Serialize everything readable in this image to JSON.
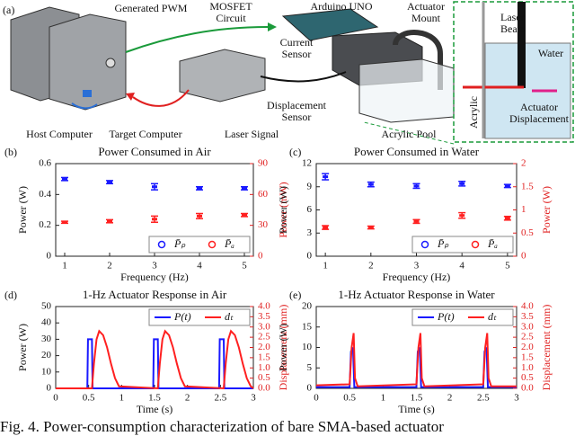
{
  "figure": {
    "panel_label": "(a)",
    "labels": {
      "generated_pwm": [
        "Generated PWM"
      ],
      "mosfet": [
        "MOSFET",
        "Circuit"
      ],
      "arduino": [
        "Arduino UNO"
      ],
      "actuator_mount": [
        "Actuator",
        "Mount"
      ],
      "current_sensor": [
        "Current",
        "Sensor"
      ],
      "displacement_sensor": [
        "Displacement",
        "Sensor"
      ],
      "host_computer": [
        "Host Computer"
      ],
      "target_computer": [
        "Target Computer"
      ],
      "laser_signal": [
        "Laser Signal"
      ],
      "acrylic_pool": [
        "Acrylic Pool"
      ],
      "laser_beam": [
        "Laser",
        "Beam"
      ],
      "water": [
        "Water"
      ],
      "acrylic": [
        "Acrylic"
      ],
      "actuator_displacement": [
        "Actuator",
        "Displacement"
      ]
    },
    "caption": "Fig. 4. Power-consumption characterization of bare SMA-based actuator"
  },
  "chart_data": [
    {
      "type": "errorbar",
      "panel_label": "(b)",
      "title": "Power Consumed in Air",
      "x_label": "Frequency (Hz)",
      "y_label": "Power (W)",
      "y2_label": "Power (mW)",
      "x": [
        1,
        2,
        3,
        4,
        5
      ],
      "xlim": [
        0.8,
        5.2
      ],
      "xticks": [
        1,
        2,
        3,
        4,
        5
      ],
      "ylim": [
        0,
        0.6
      ],
      "yticks": [
        0,
        0.2,
        0.4,
        0.6
      ],
      "y2lim": [
        0,
        90
      ],
      "y2ticks": [
        0,
        30,
        60,
        90
      ],
      "legend": "lower right",
      "series": [
        {
          "name": "P̄ₚ",
          "color": "#1a1aff",
          "values": [
            0.5,
            0.48,
            0.45,
            0.44,
            0.44
          ],
          "errors": [
            0.01,
            0.01,
            0.02,
            0.01,
            0.01
          ]
        },
        {
          "name": "P̄ₐ",
          "color": "#ff2020",
          "axis": "y2",
          "values": [
            33,
            34,
            36,
            39,
            40
          ],
          "errors": [
            1,
            1.5,
            3,
            2.5,
            1.5
          ]
        }
      ]
    },
    {
      "type": "errorbar",
      "panel_label": "(c)",
      "title": "Power Consumed in Water",
      "x_label": "Frequency (Hz)",
      "y_label": "Power (W)",
      "y2_label": "Power (W)",
      "x": [
        1,
        2,
        3,
        4,
        5
      ],
      "xlim": [
        0.8,
        5.2
      ],
      "xticks": [
        1,
        2,
        3,
        4,
        5
      ],
      "ylim": [
        0,
        12
      ],
      "yticks": [
        0,
        3,
        6,
        9,
        12
      ],
      "y2lim": [
        0,
        2
      ],
      "y2ticks": [
        0,
        0.5,
        1,
        1.5,
        2
      ],
      "legend": "lower right",
      "series": [
        {
          "name": "P̄ₚ",
          "color": "#1a1aff",
          "values": [
            10.3,
            9.3,
            9.1,
            9.4,
            9.1
          ],
          "errors": [
            0.4,
            0.3,
            0.3,
            0.3,
            0.2
          ]
        },
        {
          "name": "P̄ₐ",
          "color": "#ff2020",
          "axis": "y2",
          "values": [
            0.62,
            0.62,
            0.75,
            0.88,
            0.82
          ],
          "errors": [
            0.04,
            0.03,
            0.04,
            0.06,
            0.04
          ]
        }
      ]
    },
    {
      "type": "line",
      "panel_label": "(d)",
      "title": "1-Hz Actuator Response in Air",
      "x_label": "Time (s)",
      "y_label": "Power (W)",
      "y2_label": "Displacement (mm)",
      "xlim": [
        0,
        3
      ],
      "xticks": [
        0,
        0.5,
        1,
        1.5,
        2,
        2.5,
        3
      ],
      "ylim": [
        0,
        50
      ],
      "yticks": [
        0,
        10,
        20,
        30,
        40,
        50
      ],
      "y2lim": [
        0,
        4
      ],
      "y2ticks": [
        {
          "value": 0,
          "label": "0.0"
        },
        0.5,
        {
          "value": 1,
          "label": "1.0"
        },
        1.5,
        {
          "value": 2,
          "label": "2.0"
        },
        2.5,
        {
          "value": 3,
          "label": "3.0"
        },
        3.5,
        {
          "value": 4,
          "label": "4.0"
        }
      ],
      "legend": "upper right",
      "series": [
        {
          "name": "P(t)",
          "color": "#1a1aff",
          "x": [
            0,
            0.48,
            0.49,
            0.55,
            0.56,
            1.48,
            1.49,
            1.55,
            1.56,
            2.48,
            2.49,
            2.55,
            2.56,
            3
          ],
          "y": [
            0,
            0,
            30,
            30,
            0,
            0,
            30,
            30,
            0,
            0,
            30,
            30,
            0,
            0
          ]
        },
        {
          "name": "dₜ",
          "color": "#ff2020",
          "axis": "y2",
          "x": [
            0,
            0.55,
            0.58,
            0.62,
            0.66,
            0.72,
            0.78,
            0.84,
            0.9,
            0.96,
            1.55,
            1.58,
            1.62,
            1.66,
            1.72,
            1.78,
            1.84,
            1.9,
            1.96,
            2.55,
            2.58,
            2.62,
            2.66,
            2.72,
            2.78,
            2.84,
            2.9,
            2.96,
            3
          ],
          "y": [
            0,
            0,
            1.2,
            2.4,
            2.8,
            2.6,
            2,
            1.2,
            0.5,
            0.1,
            0,
            1.2,
            2.4,
            2.8,
            2.6,
            2,
            1.2,
            0.5,
            0.1,
            0,
            1.2,
            2.4,
            2.8,
            2.6,
            2,
            1.2,
            0.5,
            0.1,
            0
          ]
        }
      ]
    },
    {
      "type": "line",
      "panel_label": "(e)",
      "title": "1-Hz Actuator Response in Water",
      "x_label": "Time (s)",
      "y_label": "Power (W)",
      "y2_label": "Displacement (mm)",
      "xlim": [
        0,
        3
      ],
      "xticks": [
        0,
        0.5,
        1,
        1.5,
        2,
        2.5,
        3
      ],
      "ylim": [
        0,
        20
      ],
      "yticks": [
        0,
        5,
        10,
        15,
        20
      ],
      "y2lim": [
        0,
        4
      ],
      "y2ticks": [
        {
          "value": 0,
          "label": "0.0"
        },
        0.5,
        {
          "value": 1,
          "label": "1.0"
        },
        1.5,
        {
          "value": 2,
          "label": "2.0"
        },
        2.5,
        {
          "value": 3,
          "label": "3.0"
        },
        3.5,
        {
          "value": 4,
          "label": "4.0"
        }
      ],
      "legend": "upper right",
      "series": [
        {
          "name": "P(t)",
          "color": "#1a1aff",
          "x": [
            0,
            0.5,
            0.52,
            0.55,
            0.57,
            1.5,
            1.52,
            1.55,
            1.57,
            2.5,
            2.52,
            2.55,
            2.57,
            3
          ],
          "y": [
            0.3,
            0.3,
            9,
            10,
            0.3,
            0.3,
            9,
            10,
            0.3,
            0.3,
            9,
            10,
            0.3,
            0.3
          ]
        },
        {
          "name": "dₜ",
          "color": "#ff2020",
          "axis": "y2",
          "x": [
            0,
            0.5,
            0.53,
            0.56,
            0.58,
            0.62,
            1.5,
            1.53,
            1.56,
            1.58,
            1.62,
            2.5,
            2.53,
            2.56,
            2.58,
            2.62,
            3
          ],
          "y": [
            0.15,
            0.2,
            2,
            2.7,
            0.5,
            0.1,
            0.2,
            2,
            2.7,
            0.5,
            0.1,
            0.2,
            2,
            2.7,
            0.5,
            0.1,
            0.1
          ]
        }
      ]
    }
  ]
}
